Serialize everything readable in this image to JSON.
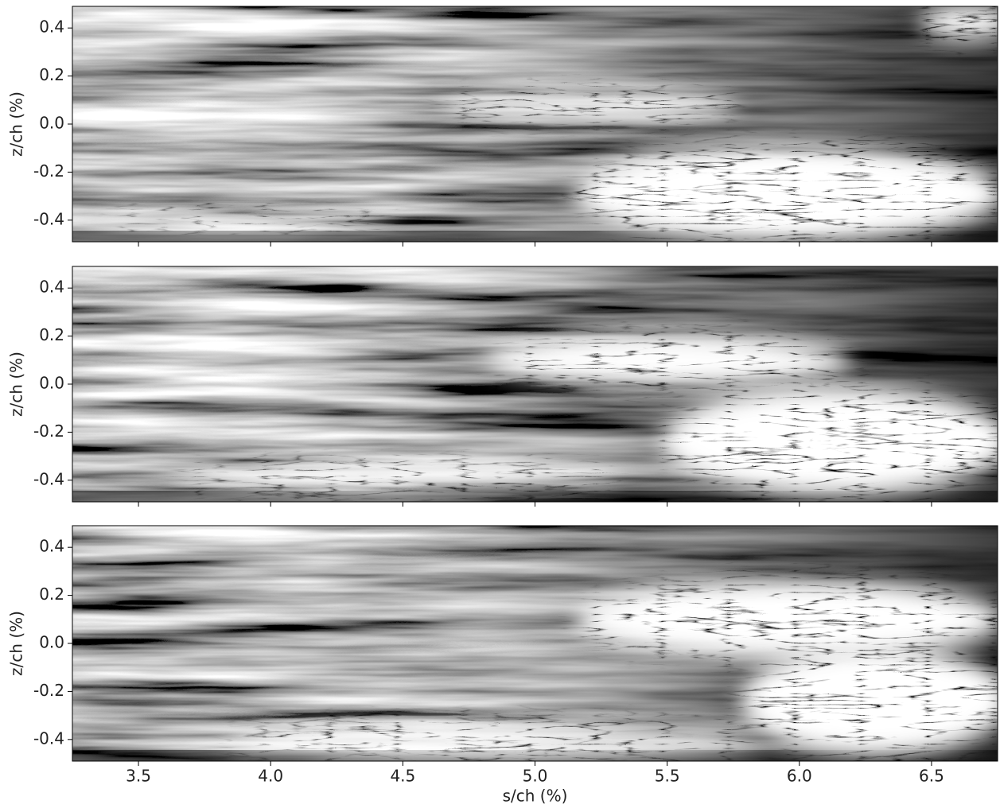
{
  "chart_data": [
    {
      "type": "image",
      "ylabel": "z/ch (%)",
      "ylim": [
        -0.49,
        0.49
      ],
      "yticks": [
        -0.4,
        -0.2,
        {
          "value": 0,
          "label": "0.0"
        },
        0.2,
        0.4
      ]
    },
    {
      "type": "image",
      "ylabel": "z/ch (%)",
      "ylim": [
        -0.49,
        0.49
      ],
      "yticks": [
        -0.4,
        -0.2,
        {
          "value": 0,
          "label": "0.0"
        },
        0.2,
        0.4
      ]
    },
    {
      "type": "image",
      "ylabel": "z/ch (%)",
      "xlabel": "s/ch (%)",
      "ylim": [
        -0.49,
        0.49
      ],
      "xlim": [
        3.25,
        6.75
      ],
      "yticks": [
        -0.4,
        -0.2,
        {
          "value": 0,
          "label": "0.0"
        },
        0.2,
        0.4
      ],
      "xticks": [
        3.5,
        {
          "value": 4,
          "label": "4.0"
        },
        4.5,
        {
          "value": 5,
          "label": "5.0"
        },
        5.5,
        {
          "value": 6,
          "label": "6.0"
        },
        6.5
      ]
    }
  ]
}
